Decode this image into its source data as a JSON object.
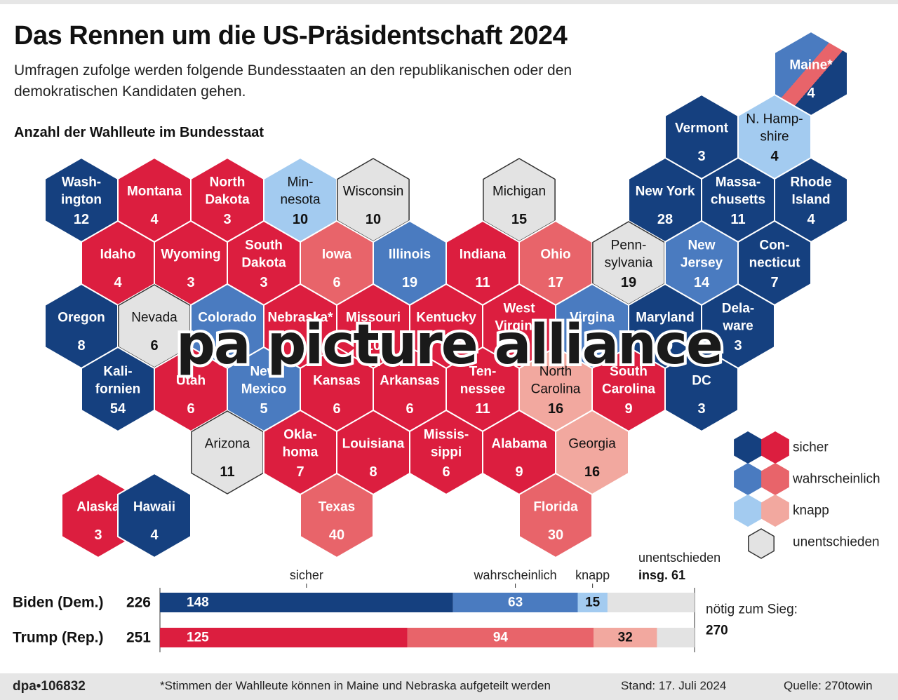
{
  "title": "Das Rennen um die US-Präsidentschaft 2024",
  "subtitle": "Umfragen zufolge werden folgende Bundesstaaten an den republikanischen oder den demokratischen Kandidaten gehen.",
  "map_label": "Anzahl der Wahlleute im Bundesstaat",
  "colors": {
    "D_safe": "#15407f",
    "D_likely": "#4a7bc0",
    "D_lean": "#a3cbf0",
    "R_safe": "#dc1e3f",
    "R_likely": "#e8646a",
    "R_lean": "#f2a89f",
    "U": "#e3e3e3"
  },
  "watermark": "pa picture alliance",
  "chart_data": {
    "type": "hex-map",
    "states": [
      {
        "name": "Maine*",
        "votes": 4,
        "cat": "split",
        "row": 0,
        "col": 10
      },
      {
        "name": "Vermont",
        "votes": 3,
        "cat": "D_safe",
        "row": 1,
        "col": 8
      },
      {
        "name": "N. Hamp-|shire",
        "votes": 4,
        "cat": "D_lean",
        "row": 1,
        "col": 9
      },
      {
        "name": "Wash-|ington",
        "votes": 12,
        "cat": "D_safe",
        "row": 2,
        "col": 0
      },
      {
        "name": "Montana",
        "votes": 4,
        "cat": "R_safe",
        "row": 2,
        "col": 1
      },
      {
        "name": "North|Dakota",
        "votes": 3,
        "cat": "R_safe",
        "row": 2,
        "col": 2
      },
      {
        "name": "Min-|nesota",
        "votes": 10,
        "cat": "D_lean",
        "row": 2,
        "col": 3
      },
      {
        "name": "Wisconsin",
        "votes": 10,
        "cat": "U",
        "row": 2,
        "col": 4
      },
      {
        "name": "Michigan",
        "votes": 15,
        "cat": "U",
        "row": 2,
        "col": 6
      },
      {
        "name": "New York",
        "votes": 28,
        "cat": "D_safe",
        "row": 2,
        "col": 8
      },
      {
        "name": "Massa-|chusetts",
        "votes": 11,
        "cat": "D_safe",
        "row": 2,
        "col": 9
      },
      {
        "name": "Rhode|Island",
        "votes": 4,
        "cat": "D_safe",
        "row": 2,
        "col": 10
      },
      {
        "name": "Idaho",
        "votes": 4,
        "cat": "R_safe",
        "row": 3,
        "col": 0
      },
      {
        "name": "Wyoming",
        "votes": 3,
        "cat": "R_safe",
        "row": 3,
        "col": 1
      },
      {
        "name": "South|Dakota",
        "votes": 3,
        "cat": "R_safe",
        "row": 3,
        "col": 2
      },
      {
        "name": "Iowa",
        "votes": 6,
        "cat": "R_likely",
        "row": 3,
        "col": 3
      },
      {
        "name": "Illinois",
        "votes": 19,
        "cat": "D_likely",
        "row": 3,
        "col": 4
      },
      {
        "name": "Indiana",
        "votes": 11,
        "cat": "R_safe",
        "row": 3,
        "col": 5
      },
      {
        "name": "Ohio",
        "votes": 17,
        "cat": "R_likely",
        "row": 3,
        "col": 6
      },
      {
        "name": "Penn-|sylvania",
        "votes": 19,
        "cat": "U",
        "row": 3,
        "col": 7
      },
      {
        "name": "New|Jersey",
        "votes": 14,
        "cat": "D_likely",
        "row": 3,
        "col": 8
      },
      {
        "name": "Con-|necticut",
        "votes": 7,
        "cat": "D_safe",
        "row": 3,
        "col": 9
      },
      {
        "name": "Oregon",
        "votes": 8,
        "cat": "D_safe",
        "row": 4,
        "col": 0
      },
      {
        "name": "Nevada",
        "votes": 6,
        "cat": "U",
        "row": 4,
        "col": 1
      },
      {
        "name": "Colorado",
        "votes": 10,
        "cat": "D_likely",
        "row": 4,
        "col": 2
      },
      {
        "name": "Nebraska*",
        "votes": 5,
        "cat": "R_safe",
        "row": 4,
        "col": 3
      },
      {
        "name": "Missouri",
        "votes": 10,
        "cat": "R_safe",
        "row": 4,
        "col": 4
      },
      {
        "name": "Kentucky",
        "votes": 8,
        "cat": "R_safe",
        "row": 4,
        "col": 5
      },
      {
        "name": "West|Virginia",
        "votes": 4,
        "cat": "R_safe",
        "row": 4,
        "col": 6
      },
      {
        "name": "Virgina",
        "votes": 13,
        "cat": "D_likely",
        "row": 4,
        "col": 7
      },
      {
        "name": "Maryland",
        "votes": 10,
        "cat": "D_safe",
        "row": 4,
        "col": 8
      },
      {
        "name": "Dela-|ware",
        "votes": 3,
        "cat": "D_safe",
        "row": 4,
        "col": 9
      },
      {
        "name": "Kali-|fornien",
        "votes": 54,
        "cat": "D_safe",
        "row": 5,
        "col": 0
      },
      {
        "name": "Utah",
        "votes": 6,
        "cat": "R_safe",
        "row": 5,
        "col": 1
      },
      {
        "name": "New|Mexico",
        "votes": 5,
        "cat": "D_likely",
        "row": 5,
        "col": 2
      },
      {
        "name": "Kansas",
        "votes": 6,
        "cat": "R_safe",
        "row": 5,
        "col": 3
      },
      {
        "name": "Arkansas",
        "votes": 6,
        "cat": "R_safe",
        "row": 5,
        "col": 4
      },
      {
        "name": "Ten-|nessee",
        "votes": 11,
        "cat": "R_safe",
        "row": 5,
        "col": 5
      },
      {
        "name": "North|Carolina",
        "votes": 16,
        "cat": "R_lean",
        "row": 5,
        "col": 6
      },
      {
        "name": "South|Carolina",
        "votes": 9,
        "cat": "R_safe",
        "row": 5,
        "col": 7
      },
      {
        "name": "DC",
        "votes": 3,
        "cat": "D_safe",
        "row": 5,
        "col": 8
      },
      {
        "name": "Arizona",
        "votes": 11,
        "cat": "U",
        "row": 6,
        "col": 2
      },
      {
        "name": "Okla-|homa",
        "votes": 7,
        "cat": "R_safe",
        "row": 6,
        "col": 3
      },
      {
        "name": "Louisiana",
        "votes": 8,
        "cat": "R_safe",
        "row": 6,
        "col": 4
      },
      {
        "name": "Missis-|sippi",
        "votes": 6,
        "cat": "R_safe",
        "row": 6,
        "col": 5
      },
      {
        "name": "Alabama",
        "votes": 9,
        "cat": "R_safe",
        "row": 6,
        "col": 6
      },
      {
        "name": "Georgia",
        "votes": 16,
        "cat": "R_lean",
        "row": 6,
        "col": 7
      },
      {
        "name": "Alaska",
        "votes": 3,
        "cat": "R_safe",
        "row": 7,
        "col": -0.27
      },
      {
        "name": "Hawaii",
        "votes": 4,
        "cat": "D_safe",
        "row": 7,
        "col": 0.5
      },
      {
        "name": "Texas",
        "votes": 40,
        "cat": "R_likely",
        "row": 7,
        "col": 3
      },
      {
        "name": "Florida",
        "votes": 30,
        "cat": "R_likely",
        "row": 7,
        "col": 6
      }
    ],
    "legend": [
      {
        "label": "sicher",
        "cats": [
          "D_safe",
          "R_safe"
        ]
      },
      {
        "label": "wahrscheinlich",
        "cats": [
          "D_likely",
          "R_likely"
        ]
      },
      {
        "label": "knapp",
        "cats": [
          "D_lean",
          "R_lean"
        ]
      },
      {
        "label": "unentschieden",
        "cats": [
          "U"
        ]
      }
    ],
    "bars": {
      "type": "stacked-bar",
      "xlim": [
        0,
        270
      ],
      "segment_labels": [
        "sicher",
        "wahrscheinlich",
        "knapp"
      ],
      "undecided_label": "unentschieden",
      "undecided_total": "insg. 61",
      "needed_label": "nötig zum Sieg:",
      "needed": 270,
      "series": [
        {
          "name": "Biden (Dem.)",
          "total": 226,
          "values": [
            148,
            63,
            15
          ],
          "cats": [
            "D_safe",
            "D_likely",
            "D_lean"
          ]
        },
        {
          "name": "Trump (Rep.)",
          "total": 251,
          "values": [
            125,
            94,
            32
          ],
          "cats": [
            "R_safe",
            "R_likely",
            "R_lean"
          ]
        }
      ]
    }
  },
  "footer": {
    "id": "dpa•106832",
    "note": "*Stimmen der Wahlleute können in Maine und Nebraska aufgeteilt werden",
    "date": "Stand: 17. Juli 2024",
    "source": "Quelle: 270towin"
  }
}
